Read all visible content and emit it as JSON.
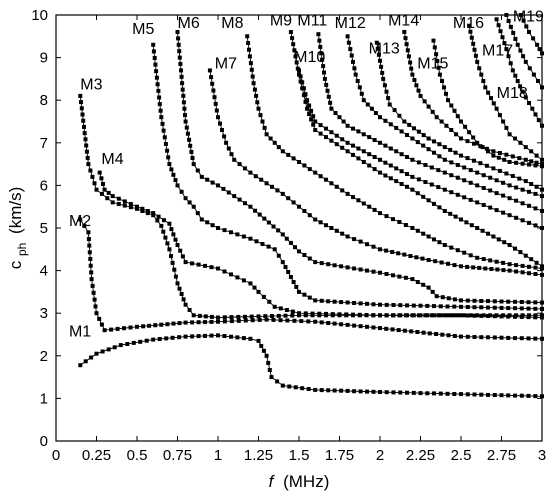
{
  "chart_data": {
    "type": "scatter",
    "title": "",
    "xlabel_var": "f",
    "xlabel_unit": "(MHz)",
    "ylabel_var": "c",
    "ylabel_sub": "ph",
    "ylabel_unit": "(km/s)",
    "xlim": [
      0,
      3
    ],
    "ylim": [
      0,
      10
    ],
    "xticks": [
      0,
      0.25,
      0.5,
      0.75,
      1,
      1.25,
      1.5,
      1.75,
      2,
      2.25,
      2.5,
      2.75,
      3
    ],
    "xtick_labels": [
      "0",
      "0.25",
      "0.5",
      "0.75",
      "1",
      "1.25",
      "1.5",
      "1.75",
      "2",
      "2.25",
      "2.5",
      "2.75",
      "3"
    ],
    "yticks": [
      0,
      1,
      2,
      3,
      4,
      5,
      6,
      7,
      8,
      9,
      10
    ],
    "ytick_labels": [
      "0",
      "1",
      "2",
      "3",
      "4",
      "5",
      "6",
      "7",
      "8",
      "9",
      "10"
    ],
    "grid": false,
    "marker": "square",
    "line_color": "#000000",
    "series": [
      {
        "name": "M1",
        "label_at": [
          0.08,
          2.45
        ],
        "points": [
          [
            0.15,
            1.78
          ],
          [
            0.25,
            2.05
          ],
          [
            0.4,
            2.25
          ],
          [
            0.6,
            2.38
          ],
          [
            0.8,
            2.45
          ],
          [
            1.0,
            2.48
          ],
          [
            1.2,
            2.4
          ],
          [
            1.25,
            2.35
          ],
          [
            1.3,
            2.0
          ],
          [
            1.33,
            1.5
          ],
          [
            1.4,
            1.3
          ],
          [
            1.6,
            1.2
          ],
          [
            2.0,
            1.15
          ],
          [
            2.5,
            1.1
          ],
          [
            3.0,
            1.05
          ]
        ]
      },
      {
        "name": "M2",
        "label_at": [
          0.08,
          5.05
        ],
        "points": [
          [
            0.15,
            5.2
          ],
          [
            0.2,
            4.9
          ],
          [
            0.22,
            3.8
          ],
          [
            0.25,
            3.0
          ],
          [
            0.3,
            2.6
          ],
          [
            0.5,
            2.68
          ],
          [
            0.8,
            2.78
          ],
          [
            1.0,
            2.8
          ],
          [
            1.3,
            2.85
          ],
          [
            1.6,
            2.8
          ],
          [
            2.0,
            2.65
          ],
          [
            2.5,
            2.45
          ],
          [
            3.0,
            2.4
          ]
        ]
      },
      {
        "name": "M3",
        "label_at": [
          0.15,
          8.25
        ],
        "points": [
          [
            0.15,
            8.1
          ],
          [
            0.2,
            6.5
          ],
          [
            0.25,
            5.9
          ],
          [
            0.35,
            5.6
          ],
          [
            0.5,
            5.45
          ],
          [
            0.6,
            5.3
          ],
          [
            0.65,
            5.05
          ],
          [
            0.7,
            4.5
          ],
          [
            0.75,
            3.7
          ],
          [
            0.8,
            3.2
          ],
          [
            0.85,
            2.95
          ],
          [
            1.0,
            2.9
          ],
          [
            1.5,
            2.95
          ],
          [
            2.0,
            2.95
          ],
          [
            2.5,
            2.95
          ],
          [
            3.0,
            2.9
          ]
        ]
      },
      {
        "name": "M4",
        "label_at": [
          0.28,
          6.5
        ],
        "points": [
          [
            0.27,
            6.3
          ],
          [
            0.3,
            5.9
          ],
          [
            0.35,
            5.75
          ],
          [
            0.5,
            5.5
          ],
          [
            0.6,
            5.35
          ],
          [
            0.7,
            5.1
          ],
          [
            0.75,
            4.6
          ],
          [
            0.8,
            4.2
          ],
          [
            1.0,
            4.05
          ],
          [
            1.2,
            3.7
          ],
          [
            1.25,
            3.5
          ],
          [
            1.35,
            3.15
          ],
          [
            1.5,
            3.0
          ],
          [
            2.0,
            2.95
          ],
          [
            3.0,
            2.95
          ]
        ]
      },
      {
        "name": "M5",
        "label_at": [
          0.47,
          9.55
        ],
        "points": [
          [
            0.6,
            9.3
          ],
          [
            0.65,
            7.6
          ],
          [
            0.7,
            6.5
          ],
          [
            0.75,
            6.0
          ],
          [
            0.8,
            5.7
          ],
          [
            0.85,
            5.5
          ],
          [
            0.9,
            5.2
          ],
          [
            1.0,
            5.0
          ],
          [
            1.2,
            4.75
          ],
          [
            1.35,
            4.5
          ],
          [
            1.4,
            4.2
          ],
          [
            1.45,
            3.85
          ],
          [
            1.5,
            3.5
          ],
          [
            1.6,
            3.3
          ],
          [
            2.0,
            3.2
          ],
          [
            2.5,
            3.15
          ],
          [
            3.0,
            3.1
          ]
        ]
      },
      {
        "name": "M6",
        "label_at": [
          0.75,
          9.7
        ],
        "points": [
          [
            0.75,
            9.6
          ],
          [
            0.8,
            7.5
          ],
          [
            0.85,
            6.5
          ],
          [
            0.9,
            6.2
          ],
          [
            1.0,
            6.0
          ],
          [
            1.2,
            5.5
          ],
          [
            1.4,
            4.85
          ],
          [
            1.5,
            4.45
          ],
          [
            1.6,
            4.2
          ],
          [
            2.0,
            3.95
          ],
          [
            2.2,
            3.8
          ],
          [
            2.3,
            3.6
          ],
          [
            2.35,
            3.4
          ],
          [
            2.5,
            3.3
          ],
          [
            3.0,
            3.25
          ]
        ]
      },
      {
        "name": "M7",
        "label_at": [
          0.98,
          8.75
        ],
        "points": [
          [
            0.95,
            8.7
          ],
          [
            1.0,
            7.6
          ],
          [
            1.05,
            7.0
          ],
          [
            1.1,
            6.6
          ],
          [
            1.2,
            6.3
          ],
          [
            1.4,
            5.8
          ],
          [
            1.6,
            5.2
          ],
          [
            1.8,
            4.8
          ],
          [
            2.0,
            4.5
          ],
          [
            2.3,
            4.25
          ],
          [
            2.5,
            4.1
          ],
          [
            2.8,
            4.0
          ],
          [
            3.0,
            3.9
          ]
        ]
      },
      {
        "name": "M8",
        "label_at": [
          1.02,
          9.7
        ],
        "points": [
          [
            1.18,
            9.5
          ],
          [
            1.22,
            8.4
          ],
          [
            1.25,
            7.8
          ],
          [
            1.3,
            7.2
          ],
          [
            1.4,
            6.8
          ],
          [
            1.6,
            6.3
          ],
          [
            1.8,
            5.8
          ],
          [
            2.0,
            5.35
          ],
          [
            2.2,
            5.0
          ],
          [
            2.4,
            4.6
          ],
          [
            2.6,
            4.3
          ],
          [
            2.8,
            4.15
          ],
          [
            3.0,
            4.05
          ]
        ]
      },
      {
        "name": "M9",
        "label_at": [
          1.32,
          9.75
        ],
        "points": [
          [
            1.45,
            9.6
          ],
          [
            1.5,
            8.6
          ],
          [
            1.55,
            7.8
          ],
          [
            1.6,
            7.3
          ],
          [
            1.8,
            6.8
          ],
          [
            2.0,
            6.3
          ],
          [
            2.2,
            5.9
          ],
          [
            2.4,
            5.4
          ],
          [
            2.6,
            5.0
          ],
          [
            2.8,
            4.6
          ],
          [
            3.0,
            4.1
          ]
        ]
      },
      {
        "name": "M10",
        "label_at": [
          1.47,
          8.9
        ],
        "points": [
          [
            1.5,
            8.7
          ],
          [
            1.55,
            8.0
          ],
          [
            1.6,
            7.5
          ],
          [
            1.8,
            7.0
          ],
          [
            2.0,
            6.6
          ],
          [
            2.2,
            6.2
          ],
          [
            2.4,
            5.9
          ],
          [
            2.6,
            5.6
          ],
          [
            2.8,
            5.3
          ],
          [
            3.0,
            5.0
          ]
        ]
      },
      {
        "name": "M11",
        "label_at": [
          1.49,
          9.75
        ],
        "points": [
          [
            1.62,
            9.55
          ],
          [
            1.66,
            8.5
          ],
          [
            1.7,
            7.8
          ],
          [
            1.8,
            7.4
          ],
          [
            2.0,
            7.0
          ],
          [
            2.2,
            6.6
          ],
          [
            2.4,
            6.3
          ],
          [
            2.6,
            6.0
          ],
          [
            2.8,
            5.7
          ],
          [
            3.0,
            5.4
          ]
        ]
      },
      {
        "name": "M12",
        "label_at": [
          1.72,
          9.7
        ],
        "points": [
          [
            1.8,
            9.5
          ],
          [
            1.85,
            8.6
          ],
          [
            1.9,
            8.0
          ],
          [
            2.0,
            7.6
          ],
          [
            2.2,
            7.1
          ],
          [
            2.4,
            6.6
          ],
          [
            2.6,
            6.3
          ],
          [
            2.8,
            6.0
          ],
          [
            3.0,
            5.75
          ]
        ]
      },
      {
        "name": "M13",
        "label_at": [
          1.93,
          9.1
        ],
        "points": [
          [
            1.98,
            9.35
          ],
          [
            2.02,
            8.5
          ],
          [
            2.06,
            7.9
          ],
          [
            2.15,
            7.5
          ],
          [
            2.3,
            7.1
          ],
          [
            2.5,
            6.7
          ],
          [
            2.7,
            6.4
          ],
          [
            2.9,
            6.1
          ],
          [
            3.0,
            5.9
          ]
        ]
      },
      {
        "name": "M14",
        "label_at": [
          2.05,
          9.75
        ],
        "points": [
          [
            2.15,
            9.6
          ],
          [
            2.2,
            8.6
          ],
          [
            2.25,
            8.1
          ],
          [
            2.35,
            7.6
          ],
          [
            2.5,
            7.1
          ],
          [
            2.7,
            6.8
          ],
          [
            2.9,
            6.6
          ],
          [
            3.0,
            6.5
          ]
        ]
      },
      {
        "name": "M15",
        "label_at": [
          2.23,
          8.75
        ],
        "points": [
          [
            2.33,
            9.4
          ],
          [
            2.37,
            8.6
          ],
          [
            2.42,
            8.0
          ],
          [
            2.5,
            7.5
          ],
          [
            2.6,
            7.0
          ],
          [
            2.7,
            6.7
          ],
          [
            2.8,
            6.55
          ],
          [
            3.0,
            6.45
          ]
        ]
      },
      {
        "name": "M16",
        "label_at": [
          2.45,
          9.7
        ],
        "points": [
          [
            2.55,
            9.75
          ],
          [
            2.6,
            8.9
          ],
          [
            2.65,
            8.3
          ],
          [
            2.72,
            7.8
          ],
          [
            2.8,
            7.2
          ],
          [
            2.9,
            6.9
          ],
          [
            3.0,
            6.6
          ]
        ]
      },
      {
        "name": "M17",
        "label_at": [
          2.63,
          9.05
        ],
        "points": [
          [
            2.72,
            9.9
          ],
          [
            2.78,
            9.2
          ],
          [
            2.82,
            8.7
          ],
          [
            2.88,
            8.2
          ],
          [
            2.94,
            7.8
          ],
          [
            3.0,
            7.4
          ]
        ]
      },
      {
        "name": "M18",
        "label_at": [
          2.72,
          8.05
        ],
        "points": [
          [
            2.78,
            10.0
          ],
          [
            2.85,
            9.3
          ],
          [
            2.9,
            8.9
          ],
          [
            2.95,
            8.6
          ],
          [
            3.0,
            8.3
          ]
        ]
      },
      {
        "name": "M19",
        "label_at": [
          2.82,
          9.85
        ],
        "points": [
          [
            2.87,
            10.0
          ],
          [
            2.92,
            9.6
          ],
          [
            2.97,
            9.3
          ],
          [
            3.0,
            9.1
          ]
        ]
      }
    ]
  }
}
